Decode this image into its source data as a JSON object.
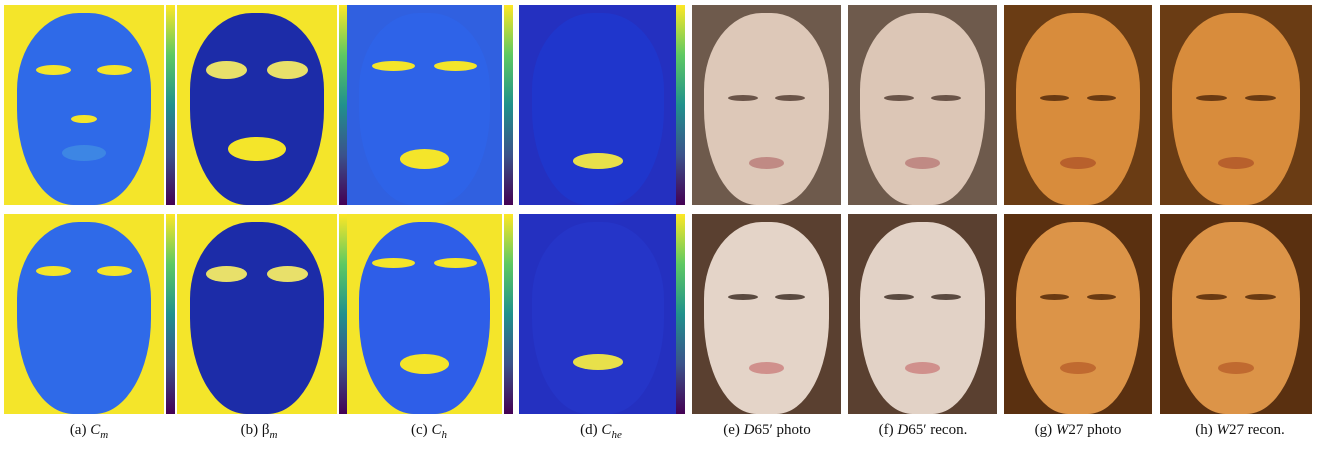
{
  "captions": [
    {
      "label": "(a)",
      "sym": "C",
      "sub": "m",
      "suffix": ""
    },
    {
      "label": "(b)",
      "sym": "β",
      "sub": "m",
      "suffix": ""
    },
    {
      "label": "(c)",
      "sym": "C",
      "sub": "h",
      "suffix": ""
    },
    {
      "label": "(d)",
      "sym": "C",
      "sub": "he",
      "suffix": ""
    },
    {
      "label": "(e)",
      "sym": "D",
      "sub": "",
      "suffix": "65′ photo"
    },
    {
      "label": "(f)",
      "sym": "D",
      "sub": "",
      "suffix": "65′ recon."
    },
    {
      "label": "(g)",
      "sym": "W",
      "sub": "",
      "suffix": "27 photo"
    },
    {
      "label": "(h)",
      "sym": "W",
      "sub": "",
      "suffix": "27 recon."
    }
  ],
  "colors": {
    "map_blue": "#2a55e6",
    "map_yellow": "#f4e52a",
    "map_navy": "#1a2aa8",
    "d65_skin": "#d8c4b6",
    "w27_skin": "#d58a3e",
    "colorbar": [
      "#fde725",
      "#5ec962",
      "#21918c",
      "#3b528b",
      "#440154"
    ]
  }
}
